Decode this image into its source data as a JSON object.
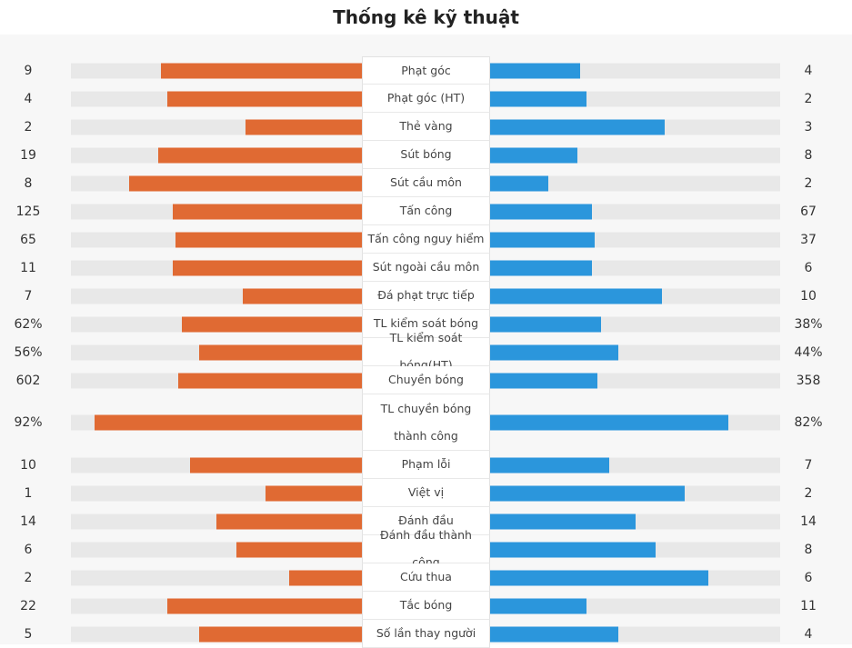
{
  "title": "Thống kê kỹ thuật",
  "colors": {
    "home": "#e06a33",
    "away": "#2b96dc",
    "track": "#e8e8e8"
  },
  "stats": [
    {
      "label": "Phạt góc",
      "home": "9",
      "away": "4",
      "home_share": 0.69,
      "away_share": 0.31
    },
    {
      "label": "Phạt góc (HT)",
      "home": "4",
      "away": "2",
      "home_share": 0.67,
      "away_share": 0.33
    },
    {
      "label": "Thẻ vàng",
      "home": "2",
      "away": "3",
      "home_share": 0.4,
      "away_share": 0.6
    },
    {
      "label": "Sút bóng",
      "home": "19",
      "away": "8",
      "home_share": 0.7,
      "away_share": 0.3
    },
    {
      "label": "Sút cầu môn",
      "home": "8",
      "away": "2",
      "home_share": 0.8,
      "away_share": 0.2
    },
    {
      "label": "Tấn công",
      "home": "125",
      "away": "67",
      "home_share": 0.65,
      "away_share": 0.35
    },
    {
      "label": "Tấn công nguy hiểm",
      "home": "65",
      "away": "37",
      "home_share": 0.64,
      "away_share": 0.36
    },
    {
      "label": "Sút ngoài cầu môn",
      "home": "11",
      "away": "6",
      "home_share": 0.65,
      "away_share": 0.35
    },
    {
      "label": "Đá phạt trực tiếp",
      "home": "7",
      "away": "10",
      "home_share": 0.41,
      "away_share": 0.59
    },
    {
      "label": "TL kiểm soát bóng",
      "home": "62%",
      "away": "38%",
      "home_share": 0.62,
      "away_share": 0.38
    },
    {
      "label": "TL kiểm soát bóng(HT)",
      "home": "56%",
      "away": "44%",
      "home_share": 0.56,
      "away_share": 0.44
    },
    {
      "label": "Chuyền bóng",
      "home": "602",
      "away": "358",
      "home_share": 0.63,
      "away_share": 0.37
    },
    {
      "label": "TL chuyền bóng thành công",
      "home": "92%",
      "away": "82%",
      "home_share": 0.92,
      "away_share": 0.82,
      "tall": true
    },
    {
      "label": "Phạm lỗi",
      "home": "10",
      "away": "7",
      "home_share": 0.59,
      "away_share": 0.41
    },
    {
      "label": "Việt vị",
      "home": "1",
      "away": "2",
      "home_share": 0.33,
      "away_share": 0.67
    },
    {
      "label": "Đánh đầu",
      "home": "14",
      "away": "14",
      "home_share": 0.5,
      "away_share": 0.5
    },
    {
      "label": "Đánh đầu thành công",
      "home": "6",
      "away": "8",
      "home_share": 0.43,
      "away_share": 0.57
    },
    {
      "label": "Cứu thua",
      "home": "2",
      "away": "6",
      "home_share": 0.25,
      "away_share": 0.75
    },
    {
      "label": "Tắc bóng",
      "home": "22",
      "away": "11",
      "home_share": 0.67,
      "away_share": 0.33
    },
    {
      "label": "Số lần thay người",
      "home": "5",
      "away": "4",
      "home_share": 0.56,
      "away_share": 0.44
    }
  ]
}
